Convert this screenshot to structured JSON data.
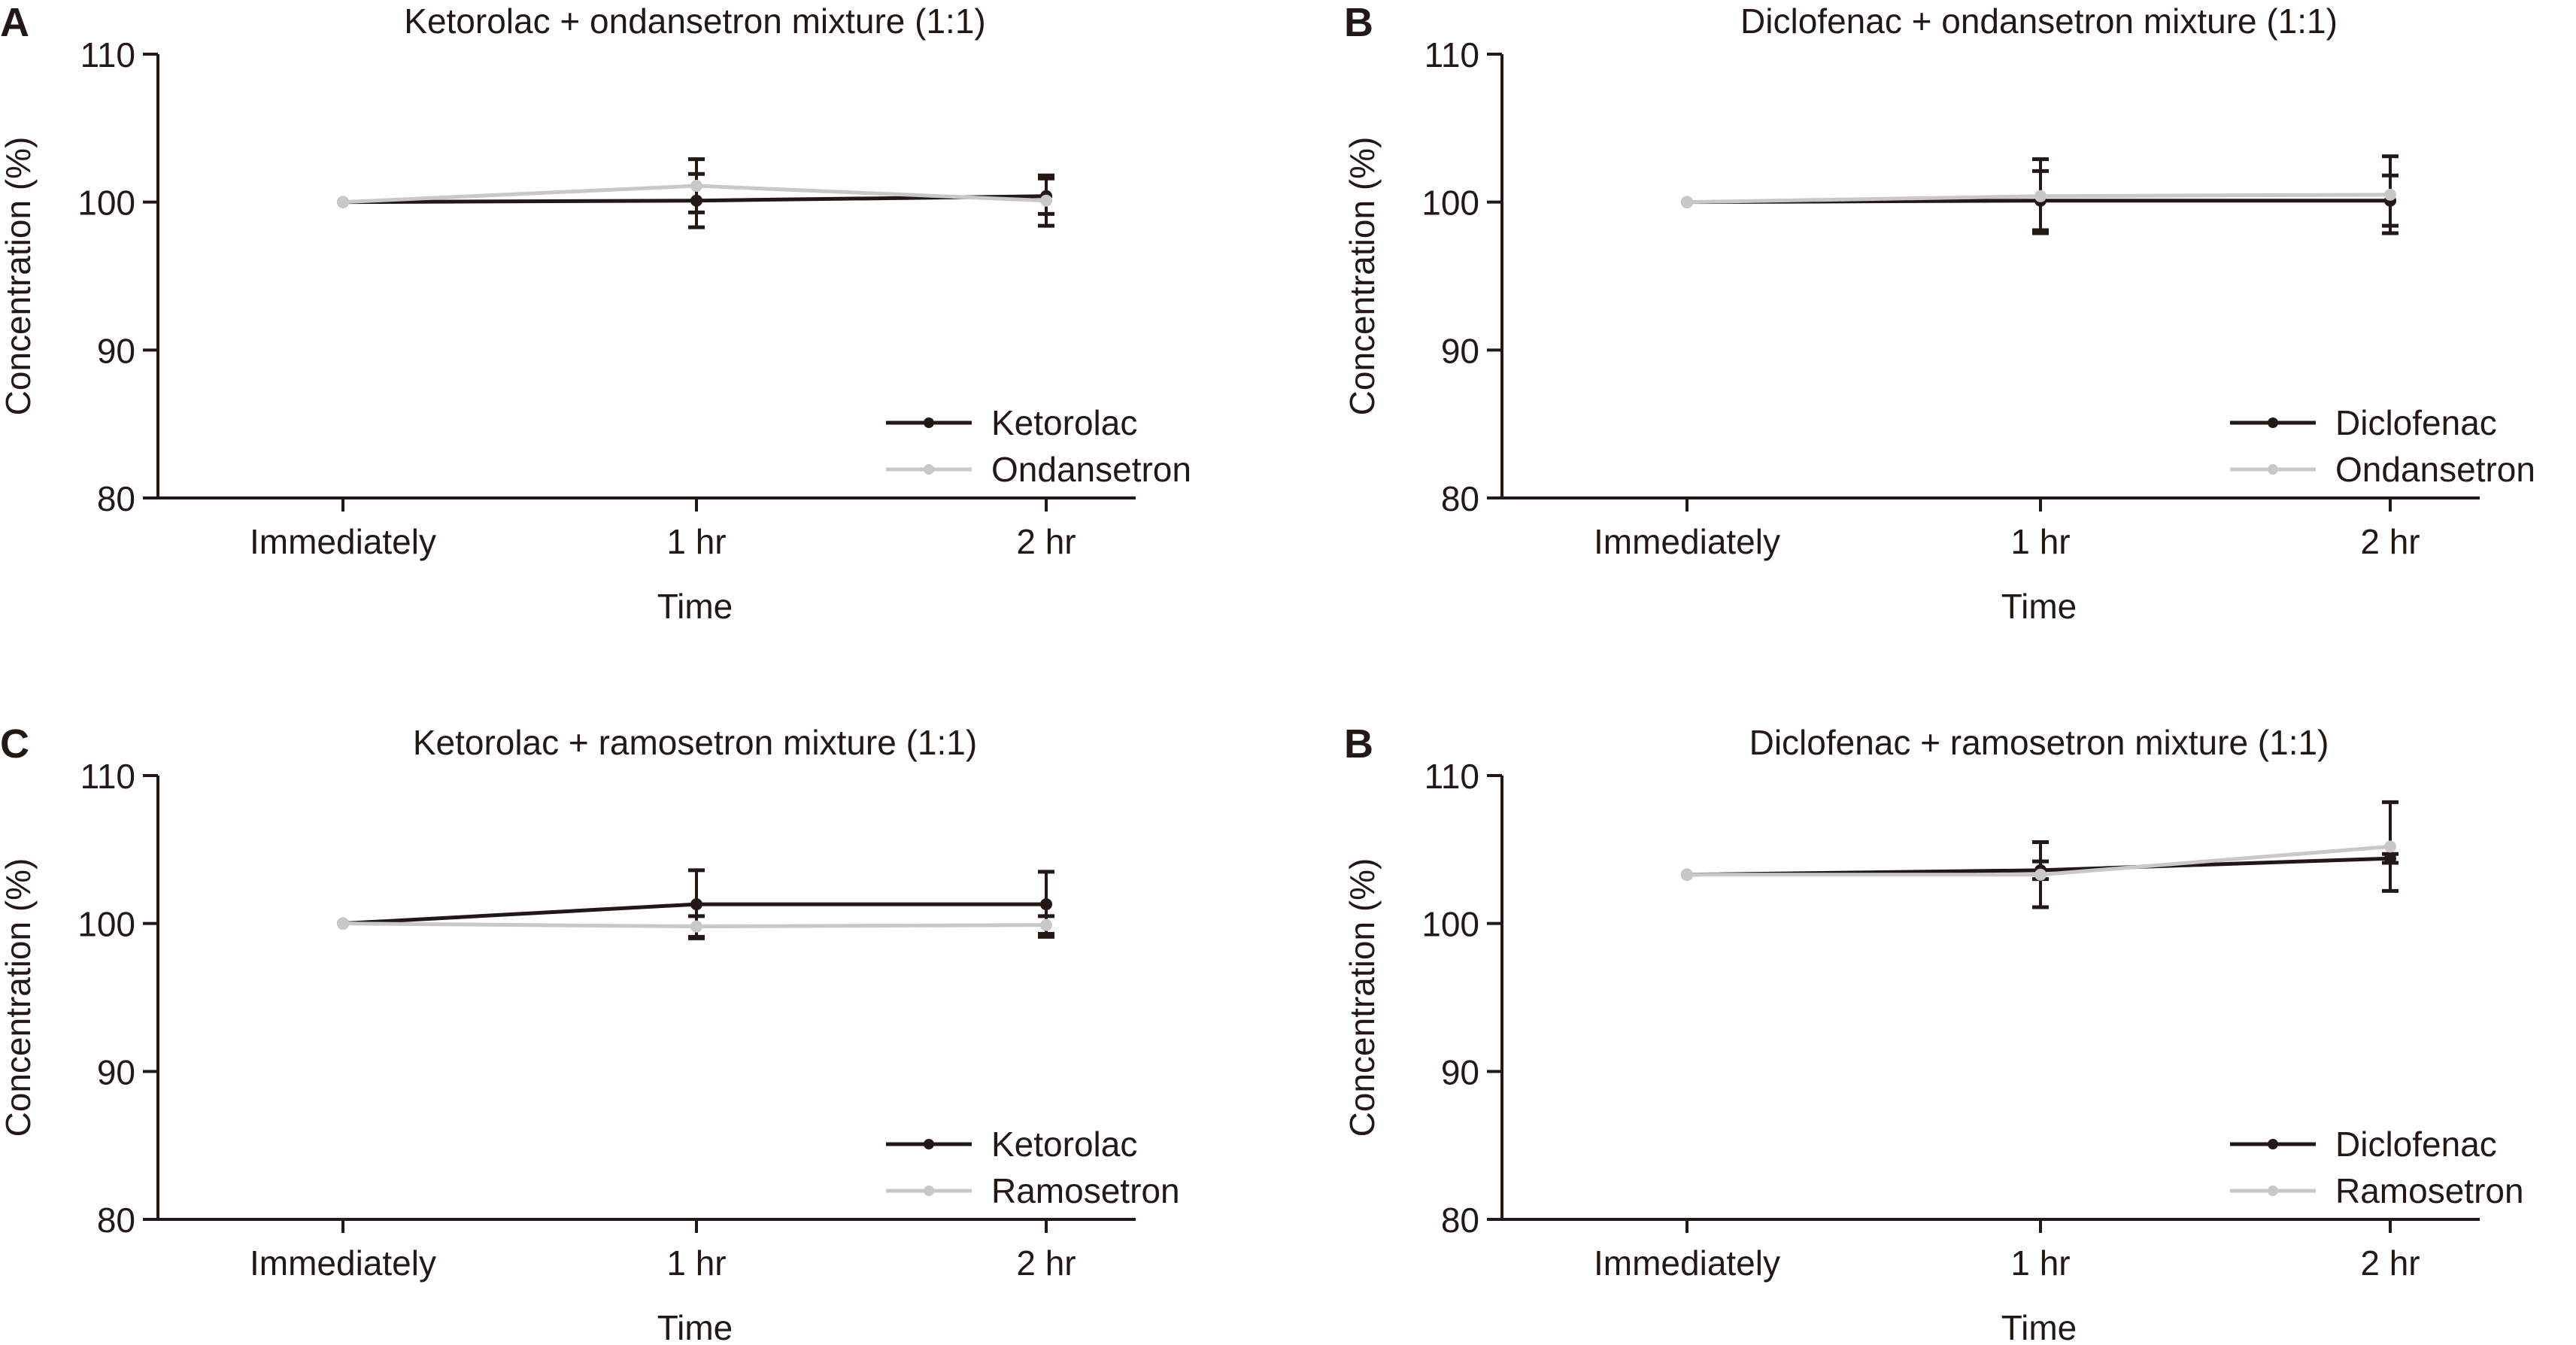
{
  "chart_data": [
    {
      "type": "line",
      "panel_label": "A",
      "title": "Ketorolac + ondansetron mixture (1:1)",
      "xlabel": "Time",
      "ylabel": "Concentration (%)",
      "categories": [
        "Immediately",
        "1 hr",
        "2 hr"
      ],
      "ylim": [
        80,
        110
      ],
      "yticks": [
        80,
        90,
        100,
        110
      ],
      "legend_position": "bottom-right",
      "series": [
        {
          "name": "Ketorolac",
          "color": "#231815",
          "values": [
            100,
            100.1,
            100.4
          ],
          "errors": [
            0,
            1.8,
            1.2
          ]
        },
        {
          "name": "Ondansetron",
          "color": "#c8c8c8",
          "values": [
            100,
            101.1,
            100.1
          ],
          "errors": [
            0,
            1.8,
            1.7
          ]
        }
      ]
    },
    {
      "type": "line",
      "panel_label": "B",
      "title": "Diclofenac + ondansetron mixture (1:1)",
      "xlabel": "Time",
      "ylabel": "Concentration (%)",
      "categories": [
        "Immediately",
        "1 hr",
        "2 hr"
      ],
      "ylim": [
        80,
        110
      ],
      "yticks": [
        80,
        90,
        100,
        110
      ],
      "legend_position": "bottom-right",
      "series": [
        {
          "name": "Diclofenac",
          "color": "#231815",
          "values": [
            100,
            100.1,
            100.1
          ],
          "errors": [
            0,
            2.0,
            1.7
          ]
        },
        {
          "name": "Ondansetron",
          "color": "#c8c8c8",
          "values": [
            100,
            100.4,
            100.5
          ],
          "errors": [
            0,
            2.5,
            2.6
          ]
        }
      ]
    },
    {
      "type": "line",
      "panel_label": "C",
      "title": "Ketorolac + ramosetron mixture (1:1)",
      "xlabel": "Time",
      "ylabel": "Concentration (%)",
      "categories": [
        "Immediately",
        "1 hr",
        "2 hr"
      ],
      "ylim": [
        80,
        110
      ],
      "yticks": [
        80,
        90,
        100,
        110
      ],
      "legend_position": "bottom-right",
      "series": [
        {
          "name": "Ketorolac",
          "color": "#231815",
          "values": [
            100,
            101.3,
            101.3
          ],
          "errors": [
            0,
            2.3,
            2.2
          ]
        },
        {
          "name": "Ramosetron",
          "color": "#c8c8c8",
          "values": [
            100,
            99.8,
            99.9
          ],
          "errors": [
            0,
            0.7,
            0.6
          ]
        }
      ]
    },
    {
      "type": "line",
      "panel_label": "B",
      "title": "Diclofenac + ramosetron mixture (1:1)",
      "xlabel": "Time",
      "ylabel": "Concentration (%)",
      "categories": [
        "Immediately",
        "1 hr",
        "2 hr"
      ],
      "ylim": [
        80,
        110
      ],
      "yticks": [
        80,
        90,
        100,
        110
      ],
      "legend_position": "bottom-right",
      "series": [
        {
          "name": "Diclofenac",
          "color": "#231815",
          "values": [
            103.3,
            103.6,
            104.4
          ],
          "errors": [
            0,
            0.6,
            0.3
          ]
        },
        {
          "name": "Ramosetron",
          "color": "#c8c8c8",
          "values": [
            103.3,
            103.3,
            105.2
          ],
          "errors": [
            0,
            2.2,
            3.0
          ]
        }
      ]
    }
  ]
}
